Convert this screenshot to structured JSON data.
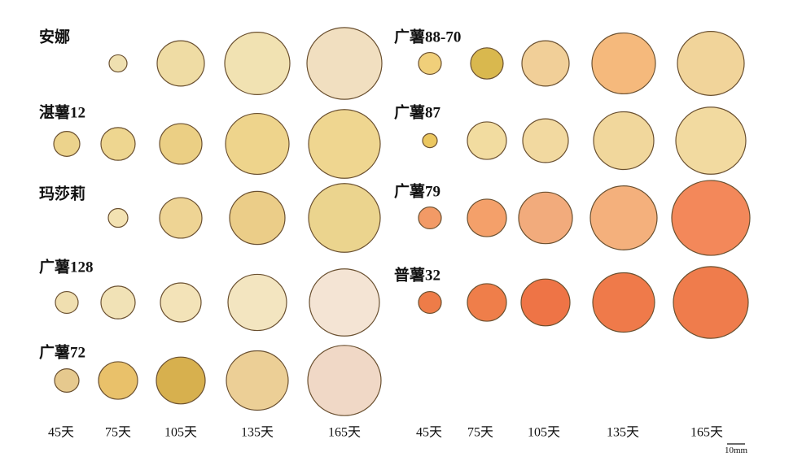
{
  "left_group": {
    "varieties": [
      "安娜",
      "湛薯12",
      "玛莎莉",
      "广薯128",
      "广薯72"
    ],
    "day_labels": [
      "45天",
      "75天",
      "105天",
      "135天",
      "165天"
    ]
  },
  "right_group": {
    "varieties": [
      "广薯88-70",
      "广薯87",
      "广薯79",
      "普薯32"
    ],
    "day_labels": [
      "45天",
      "75天",
      "105天",
      "135天",
      "165天"
    ]
  },
  "scale_bar": "10mm"
}
